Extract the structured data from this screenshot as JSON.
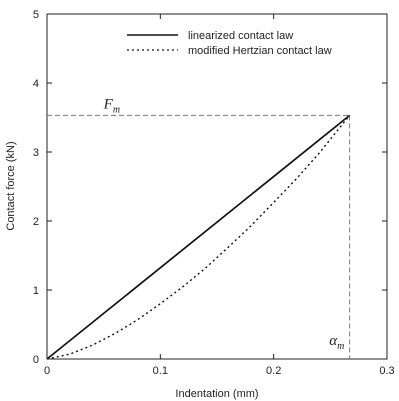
{
  "chart_data": {
    "type": "line",
    "xlabel": "Indentation (mm)",
    "ylabel": "Contact force (kN)",
    "xlim": [
      0,
      0.3
    ],
    "ylim": [
      0,
      5
    ],
    "xticks": [
      0,
      0.1,
      0.2,
      0.3
    ],
    "xtick_labels": [
      "0",
      "0.1",
      "0.2",
      "0.3"
    ],
    "yticks": [
      0,
      1,
      2,
      3,
      4,
      5
    ],
    "ytick_labels": [
      "0",
      "1",
      "2",
      "3",
      "4",
      "5"
    ],
    "grid": false,
    "legend_position": "top-center",
    "series": [
      {
        "name": "linearized contact law",
        "style": "solid",
        "color": "#111111",
        "x": [
          0,
          0.267
        ],
        "y": [
          0,
          3.53
        ]
      },
      {
        "name": "modified Hertzian contact law",
        "style": "dotted",
        "color": "#111111",
        "x": [
          0,
          0.02,
          0.04,
          0.06,
          0.08,
          0.1,
          0.12,
          0.14,
          0.16,
          0.18,
          0.2,
          0.22,
          0.24,
          0.267
        ],
        "y": [
          0,
          0.07,
          0.2,
          0.37,
          0.57,
          0.8,
          1.05,
          1.32,
          1.62,
          1.93,
          2.27,
          2.61,
          2.98,
          3.53
        ]
      }
    ],
    "reference_lines": {
      "peak_x": 0.267,
      "peak_y": 3.53,
      "style": "dashed",
      "color": "#777777"
    },
    "annotations": [
      {
        "id": "force",
        "text": "F",
        "subscript": "m",
        "x": 0.05,
        "y": 3.63
      },
      {
        "id": "indent",
        "text": "α",
        "subscript": "m",
        "x": 0.249,
        "y": 0.2
      }
    ]
  }
}
